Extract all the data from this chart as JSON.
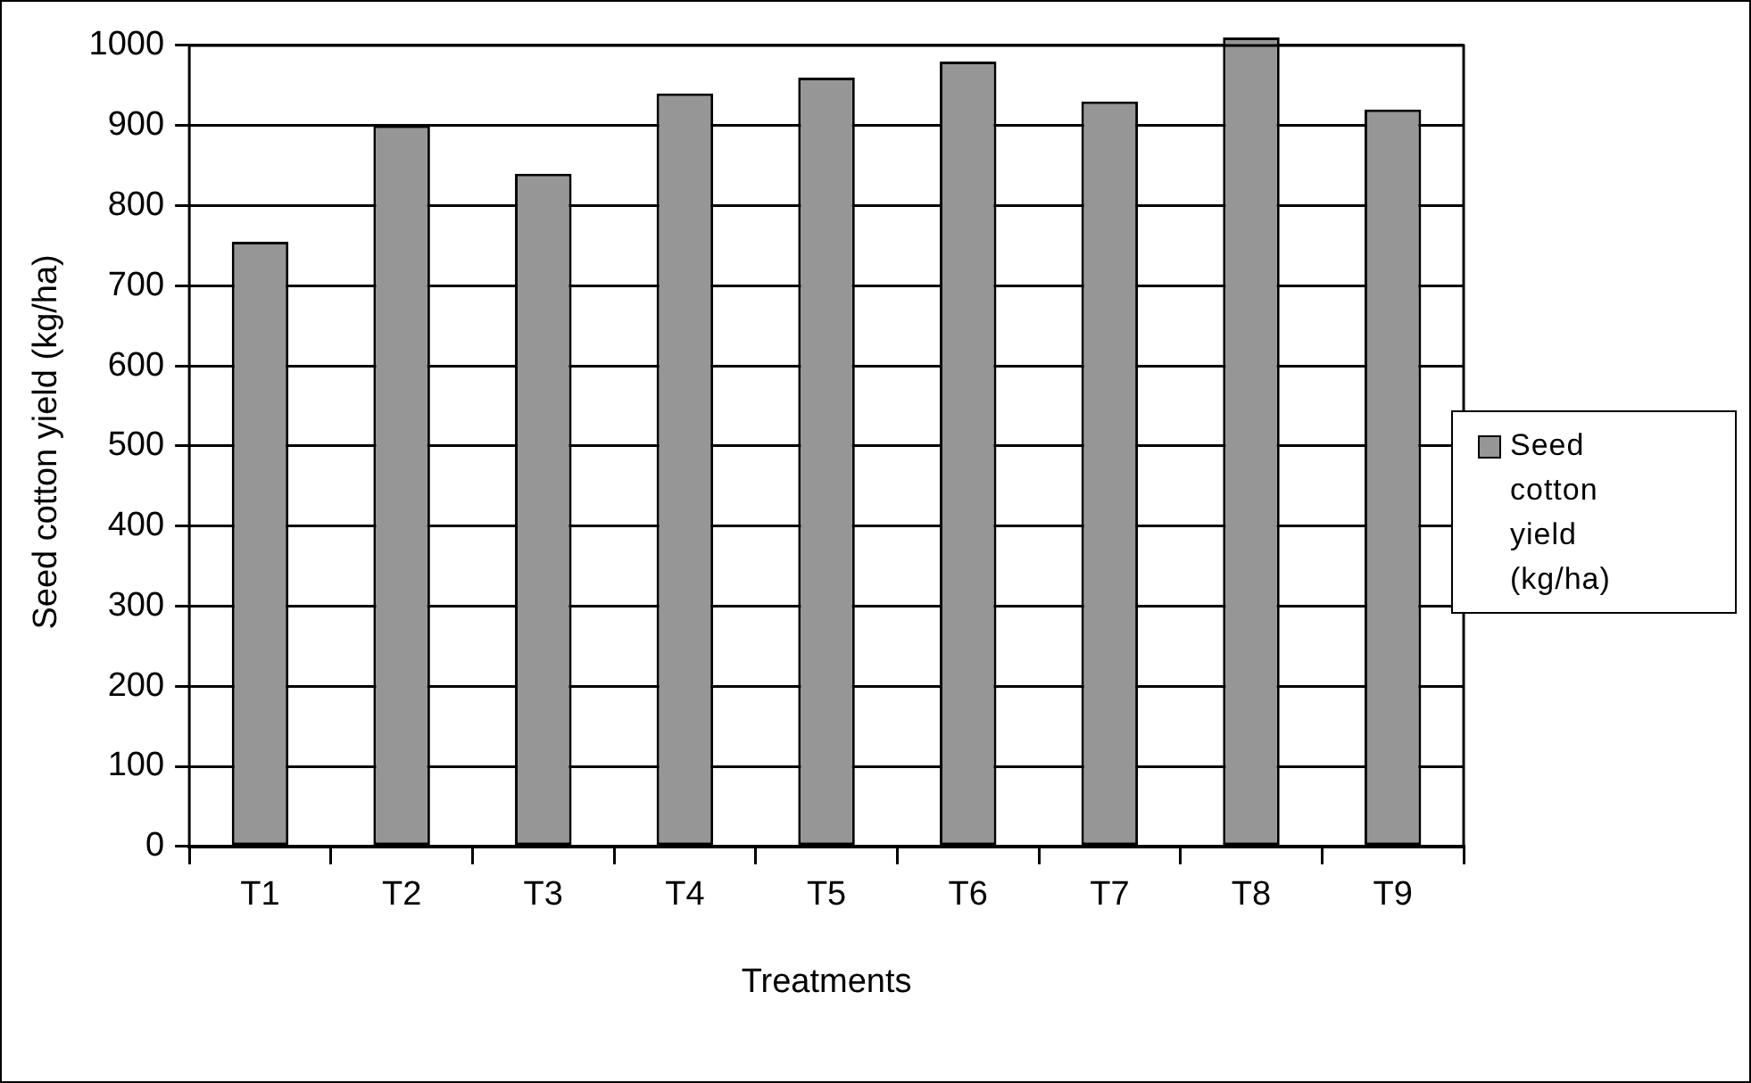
{
  "chart_data": {
    "type": "bar",
    "xlabel": "Treatments",
    "ylabel": "Seed cotton yield (kg/ha)",
    "categories": [
      "T1",
      "T2",
      "T3",
      "T4",
      "T5",
      "T6",
      "T7",
      "T8",
      "T9"
    ],
    "series": [
      {
        "name": "Seed cotton yield (kg/ha)",
        "color": "#969696",
        "values": [
          755,
          900,
          840,
          940,
          960,
          980,
          930,
          1010,
          920
        ]
      }
    ],
    "ylim": [
      0,
      1010
    ],
    "yticks": [
      0,
      100,
      200,
      300,
      400,
      500,
      600,
      700,
      800,
      900,
      1000
    ],
    "grid": "y",
    "legend": "right"
  }
}
